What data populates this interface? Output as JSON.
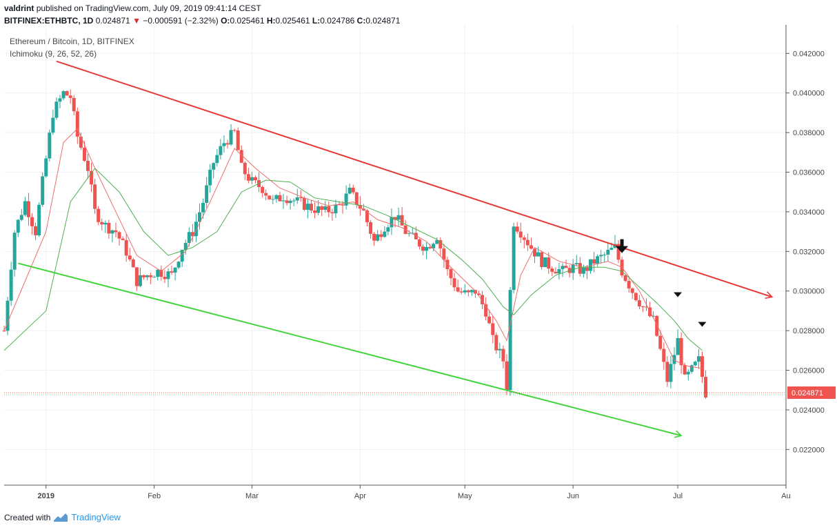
{
  "header": {
    "author": "valdrint",
    "published_text": "published on TradingView.com, July 09, 2019 09:41:14 CEST",
    "symbol": "BITFINEX:ETHBTC, 1D",
    "last": "0.024871",
    "change": "−0.000591 (−2.32%)",
    "o_label": "O:",
    "o": "0.025461",
    "h_label": "H:",
    "h": "0.025461",
    "l_label": "L:",
    "l": "0.024786",
    "c_label": "C:",
    "c": "0.024871"
  },
  "legend": {
    "title": "Ethereum / Bitcoin, 1D, BITFINEX",
    "indicator": "Ichimoku (9, 26, 52, 26)"
  },
  "footer": {
    "created_with": "Created with",
    "brand": "TradingView"
  },
  "colors": {
    "up": "#26a69a",
    "down": "#ef5350",
    "resistance": "#e53935",
    "support": "#43d43d",
    "fast_line": "#ef6c6c",
    "slow_line": "#4caf50",
    "grid": "#eef1f6",
    "axis": "#555555"
  },
  "chart_data": {
    "type": "candlestick",
    "price_axis": {
      "range": [
        0.0202,
        0.0433
      ],
      "ticks": [
        "0.042000",
        "0.040000",
        "0.038000",
        "0.036000",
        "0.034000",
        "0.032000",
        "0.030000",
        "0.028000",
        "0.026000",
        "0.024000",
        "0.022000"
      ],
      "last_price_label": "0.024871"
    },
    "time_axis": {
      "ticks": [
        {
          "label": "2019",
          "date": "2019-01-01"
        },
        {
          "label": "Feb",
          "date": "2019-02-01"
        },
        {
          "label": "Mar",
          "date": "2019-03-01"
        },
        {
          "label": "Apr",
          "date": "2019-04-01"
        },
        {
          "label": "May",
          "date": "2019-05-01"
        },
        {
          "label": "Jun",
          "date": "2019-06-01"
        },
        {
          "label": "Jul",
          "date": "2019-07-01"
        },
        {
          "label": "Au",
          "date": "2019-08-01"
        }
      ],
      "start": "2018-12-20",
      "end": "2019-08-01"
    },
    "closes": [
      [
        "2018-12-20",
        0.028
      ],
      [
        "2018-12-23",
        0.033
      ],
      [
        "2018-12-26",
        0.0345
      ],
      [
        "2018-12-29",
        0.033
      ],
      [
        "2018-12-31",
        0.0355
      ],
      [
        "2019-01-03",
        0.039
      ],
      [
        "2019-01-06",
        0.04
      ],
      [
        "2019-01-08",
        0.0398
      ],
      [
        "2019-01-10",
        0.0378
      ],
      [
        "2019-01-13",
        0.0362
      ],
      [
        "2019-01-15",
        0.034
      ],
      [
        "2019-01-18",
        0.0333
      ],
      [
        "2019-01-21",
        0.033
      ],
      [
        "2019-01-24",
        0.032
      ],
      [
        "2019-01-27",
        0.0305
      ],
      [
        "2019-01-30",
        0.0308
      ],
      [
        "2019-02-02",
        0.031
      ],
      [
        "2019-02-06",
        0.0308
      ],
      [
        "2019-02-09",
        0.0322
      ],
      [
        "2019-02-12",
        0.033
      ],
      [
        "2019-02-15",
        0.0345
      ],
      [
        "2019-02-18",
        0.0365
      ],
      [
        "2019-02-21",
        0.0375
      ],
      [
        "2019-02-24",
        0.038
      ],
      [
        "2019-02-26",
        0.0362
      ],
      [
        "2019-03-01",
        0.0355
      ],
      [
        "2019-03-04",
        0.0352
      ],
      [
        "2019-03-07",
        0.0345
      ],
      [
        "2019-03-10",
        0.0348
      ],
      [
        "2019-03-14",
        0.0345
      ],
      [
        "2019-03-18",
        0.0342
      ],
      [
        "2019-03-22",
        0.034
      ],
      [
        "2019-03-26",
        0.0343
      ],
      [
        "2019-03-29",
        0.035
      ],
      [
        "2019-04-02",
        0.034
      ],
      [
        "2019-04-05",
        0.0325
      ],
      [
        "2019-04-08",
        0.0333
      ],
      [
        "2019-04-11",
        0.0338
      ],
      [
        "2019-04-14",
        0.033
      ],
      [
        "2019-04-17",
        0.0325
      ],
      [
        "2019-04-20",
        0.0322
      ],
      [
        "2019-04-23",
        0.0328
      ],
      [
        "2019-04-26",
        0.031
      ],
      [
        "2019-04-29",
        0.03
      ],
      [
        "2019-05-02",
        0.0298
      ],
      [
        "2019-05-04",
        0.03
      ],
      [
        "2019-05-07",
        0.029
      ],
      [
        "2019-05-09",
        0.0275
      ],
      [
        "2019-05-12",
        0.0265
      ],
      [
        "2019-05-13",
        0.0252
      ],
      [
        "2019-05-14",
        0.03
      ],
      [
        "2019-05-15",
        0.0335
      ],
      [
        "2019-05-17",
        0.033
      ],
      [
        "2019-05-20",
        0.0322
      ],
      [
        "2019-05-23",
        0.0315
      ],
      [
        "2019-05-26",
        0.0312
      ],
      [
        "2019-05-29",
        0.031
      ],
      [
        "2019-06-01",
        0.0312
      ],
      [
        "2019-06-04",
        0.031
      ],
      [
        "2019-06-07",
        0.0315
      ],
      [
        "2019-06-10",
        0.0318
      ],
      [
        "2019-06-13",
        0.0322
      ],
      [
        "2019-06-15",
        0.031
      ],
      [
        "2019-06-18",
        0.03
      ],
      [
        "2019-06-21",
        0.0292
      ],
      [
        "2019-06-24",
        0.0285
      ],
      [
        "2019-06-26",
        0.027
      ],
      [
        "2019-06-28",
        0.0255
      ],
      [
        "2019-07-01",
        0.0275
      ],
      [
        "2019-07-03",
        0.0255
      ],
      [
        "2019-07-05",
        0.026
      ],
      [
        "2019-07-07",
        0.0265
      ],
      [
        "2019-07-09",
        0.02487
      ]
    ],
    "indicator_lines": [
      {
        "name": "fast",
        "points": [
          [
            "2018-12-20",
            0.028
          ],
          [
            "2019-01-01",
            0.033
          ],
          [
            "2019-01-06",
            0.0375
          ],
          [
            "2019-01-10",
            0.0382
          ],
          [
            "2019-01-15",
            0.0362
          ],
          [
            "2019-01-21",
            0.034
          ],
          [
            "2019-01-27",
            0.0318
          ],
          [
            "2019-02-03",
            0.031
          ],
          [
            "2019-02-10",
            0.032
          ],
          [
            "2019-02-17",
            0.0345
          ],
          [
            "2019-02-24",
            0.0372
          ],
          [
            "2019-03-02",
            0.0362
          ],
          [
            "2019-03-09",
            0.0352
          ],
          [
            "2019-03-16",
            0.0347
          ],
          [
            "2019-03-23",
            0.0343
          ],
          [
            "2019-03-30",
            0.0345
          ],
          [
            "2019-04-06",
            0.0336
          ],
          [
            "2019-04-13",
            0.0332
          ],
          [
            "2019-04-20",
            0.0325
          ],
          [
            "2019-04-27",
            0.0312
          ],
          [
            "2019-05-04",
            0.03
          ],
          [
            "2019-05-10",
            0.0285
          ],
          [
            "2019-05-13",
            0.0275
          ],
          [
            "2019-05-17",
            0.0308
          ],
          [
            "2019-05-21",
            0.0322
          ],
          [
            "2019-05-28",
            0.0315
          ],
          [
            "2019-06-04",
            0.0312
          ],
          [
            "2019-06-11",
            0.0315
          ],
          [
            "2019-06-15",
            0.0312
          ],
          [
            "2019-06-20",
            0.03
          ],
          [
            "2019-06-25",
            0.0283
          ],
          [
            "2019-06-30",
            0.0265
          ],
          [
            "2019-07-04",
            0.0262
          ],
          [
            "2019-07-08",
            0.0261
          ]
        ]
      },
      {
        "name": "slow",
        "points": [
          [
            "2018-12-20",
            0.027
          ],
          [
            "2019-01-01",
            0.029
          ],
          [
            "2019-01-08",
            0.0345
          ],
          [
            "2019-01-15",
            0.0362
          ],
          [
            "2019-01-22",
            0.035
          ],
          [
            "2019-01-29",
            0.033
          ],
          [
            "2019-02-05",
            0.0318
          ],
          [
            "2019-02-12",
            0.0322
          ],
          [
            "2019-02-19",
            0.033
          ],
          [
            "2019-02-26",
            0.035
          ],
          [
            "2019-03-05",
            0.0356
          ],
          [
            "2019-03-12",
            0.0355
          ],
          [
            "2019-03-19",
            0.0347
          ],
          [
            "2019-03-26",
            0.0345
          ],
          [
            "2019-04-02",
            0.0343
          ],
          [
            "2019-04-09",
            0.0338
          ],
          [
            "2019-04-16",
            0.0332
          ],
          [
            "2019-04-23",
            0.0326
          ],
          [
            "2019-04-30",
            0.0316
          ],
          [
            "2019-05-06",
            0.0306
          ],
          [
            "2019-05-12",
            0.0292
          ],
          [
            "2019-05-15",
            0.0288
          ],
          [
            "2019-05-20",
            0.0298
          ],
          [
            "2019-05-27",
            0.0308
          ],
          [
            "2019-06-03",
            0.0312
          ],
          [
            "2019-06-10",
            0.0312
          ],
          [
            "2019-06-15",
            0.031
          ],
          [
            "2019-06-20",
            0.0302
          ],
          [
            "2019-06-25",
            0.0294
          ],
          [
            "2019-06-30",
            0.0285
          ],
          [
            "2019-07-04",
            0.0276
          ],
          [
            "2019-07-08",
            0.027
          ]
        ]
      }
    ],
    "trendlines": [
      {
        "name": "resistance",
        "from": [
          "2019-01-04",
          0.0416
        ],
        "to": [
          "2019-07-28",
          0.0297
        ],
        "arrow": true
      },
      {
        "name": "support",
        "from": [
          "2018-12-24",
          0.0314
        ],
        "to": [
          "2019-07-02",
          0.0227
        ],
        "arrow": true
      }
    ],
    "markers": [
      {
        "type": "arrow-down",
        "date": "2019-06-15",
        "value": 0.0322
      },
      {
        "type": "triangle-down",
        "date": "2019-07-01",
        "value": 0.0298
      },
      {
        "type": "triangle-down",
        "date": "2019-07-08",
        "value": 0.0283
      }
    ],
    "last_price_line": 0.02487
  }
}
